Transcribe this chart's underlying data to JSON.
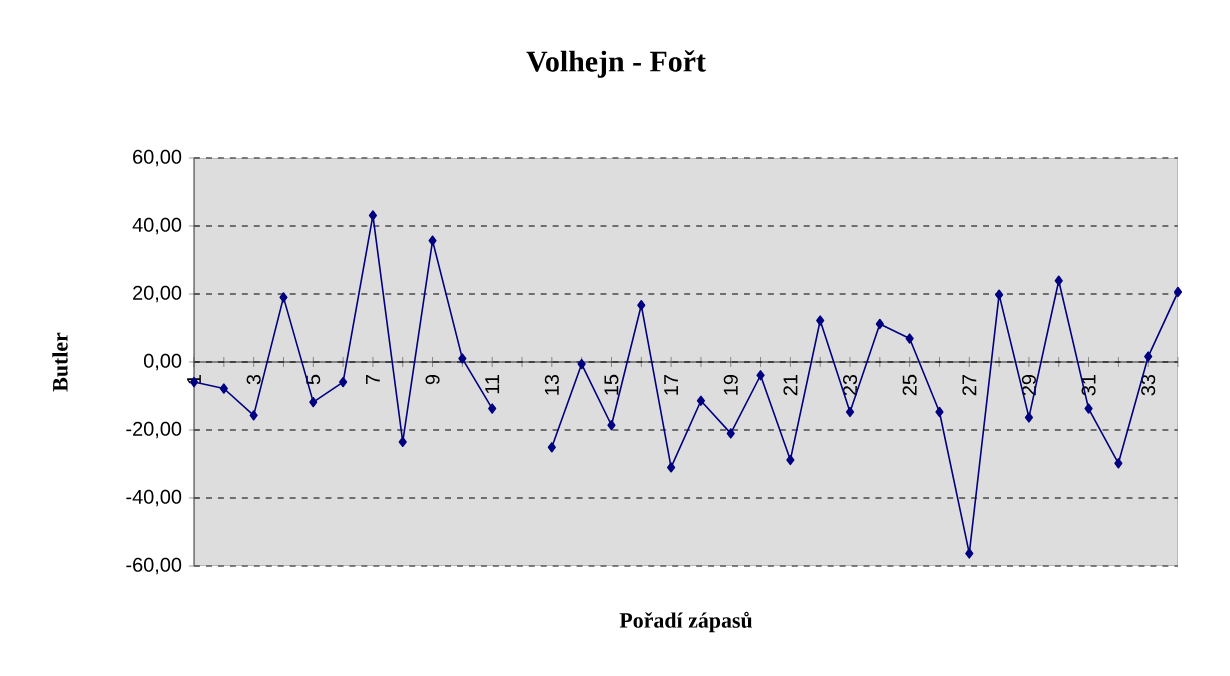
{
  "chart_data": {
    "type": "line",
    "title": "Volhejn - Fořt",
    "xlabel": "Pořadí zápasů",
    "ylabel": "Butler",
    "categories": [
      "1",
      null,
      "3",
      null,
      "5",
      null,
      "7",
      null,
      "9",
      null,
      "11",
      null,
      "13",
      null,
      "15",
      null,
      "17",
      null,
      "19",
      null,
      "21",
      null,
      "23",
      null,
      "25",
      null,
      "27",
      null,
      "29",
      null,
      "31",
      null,
      "33",
      null
    ],
    "series": [
      {
        "color": "#000080",
        "values": [
          -5.9,
          -7.8,
          -15.7,
          19.0,
          -11.8,
          -5.9,
          43.1,
          -23.5,
          35.7,
          1.0,
          -13.7,
          null,
          -25.1,
          -0.6,
          -18.6,
          16.7,
          -31.0,
          -11.4,
          -21.0,
          -3.9,
          -28.8,
          12.2,
          -14.7,
          11.2,
          6.9,
          -14.7,
          -56.3,
          19.8,
          -16.3,
          23.9,
          -13.7,
          -29.8,
          1.6,
          20.6
        ]
      }
    ],
    "ylim": [
      -60,
      60
    ],
    "yticks": [
      {
        "value": -60,
        "label": "-60,00"
      },
      {
        "value": -40,
        "label": "-40,00"
      },
      {
        "value": -20,
        "label": "-20,00"
      },
      {
        "value": 0,
        "label": "0,00"
      },
      {
        "value": 20,
        "label": "20,00"
      },
      {
        "value": 40,
        "label": "40,00"
      },
      {
        "value": 60,
        "label": "60,00"
      }
    ],
    "grid": "y",
    "marker": "diamond",
    "line_style": "solid"
  }
}
